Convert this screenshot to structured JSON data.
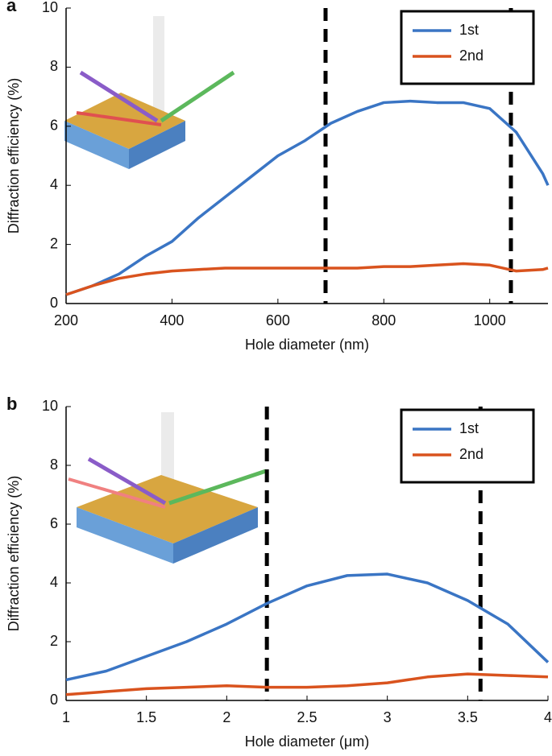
{
  "chart_data": [
    {
      "type": "line",
      "panel_label": "a",
      "xlabel": "Hole diameter (nm)",
      "ylabel": "Diffraction efficiency (%)",
      "x": [
        200,
        250,
        300,
        350,
        400,
        450,
        500,
        550,
        600,
        650,
        700,
        750,
        800,
        850,
        900,
        950,
        1000,
        1050,
        1100,
        1110
      ],
      "series": [
        {
          "name": "1st",
          "color": "#3a75c4",
          "values": [
            0.3,
            0.6,
            1.0,
            1.6,
            2.1,
            2.9,
            3.6,
            4.3,
            5.0,
            5.5,
            6.1,
            6.5,
            6.8,
            6.85,
            6.8,
            6.8,
            6.6,
            5.8,
            4.4,
            4.0
          ]
        },
        {
          "name": "2nd",
          "color": "#d9531e",
          "values": [
            0.3,
            0.6,
            0.85,
            1.0,
            1.1,
            1.15,
            1.2,
            1.2,
            1.2,
            1.2,
            1.2,
            1.2,
            1.25,
            1.25,
            1.3,
            1.35,
            1.3,
            1.1,
            1.15,
            1.2
          ]
        }
      ],
      "vlines": [
        690,
        1040
      ],
      "xlim": [
        200,
        1110
      ],
      "xticks": [
        200,
        400,
        600,
        800,
        1000
      ],
      "ylim": [
        0,
        10
      ],
      "yticks": [
        0,
        2,
        4,
        6,
        8,
        10
      ],
      "legend": "upper right"
    },
    {
      "type": "line",
      "panel_label": "b",
      "xlabel": "Hole diameter (μm)",
      "ylabel": "Diffraction efficiency (%)",
      "x": [
        1,
        1.25,
        1.5,
        1.75,
        2,
        2.25,
        2.5,
        2.75,
        3,
        3.25,
        3.5,
        3.75,
        4
      ],
      "series": [
        {
          "name": "1st",
          "color": "#3a75c4",
          "values": [
            0.7,
            1.0,
            1.5,
            2.0,
            2.6,
            3.3,
            3.9,
            4.25,
            4.3,
            4.0,
            3.4,
            2.6,
            1.3
          ]
        },
        {
          "name": "2nd",
          "color": "#d9531e",
          "values": [
            0.2,
            0.3,
            0.4,
            0.45,
            0.5,
            0.45,
            0.45,
            0.5,
            0.6,
            0.8,
            0.9,
            0.85,
            0.8
          ]
        }
      ],
      "vlines": [
        2.25,
        3.58
      ],
      "xlim": [
        1,
        4
      ],
      "xticks": [
        1,
        1.5,
        2,
        2.5,
        3,
        3.5,
        4
      ],
      "ylim": [
        0,
        10
      ],
      "yticks": [
        0,
        2,
        4,
        6,
        8,
        10
      ],
      "legend": "upper right"
    }
  ]
}
